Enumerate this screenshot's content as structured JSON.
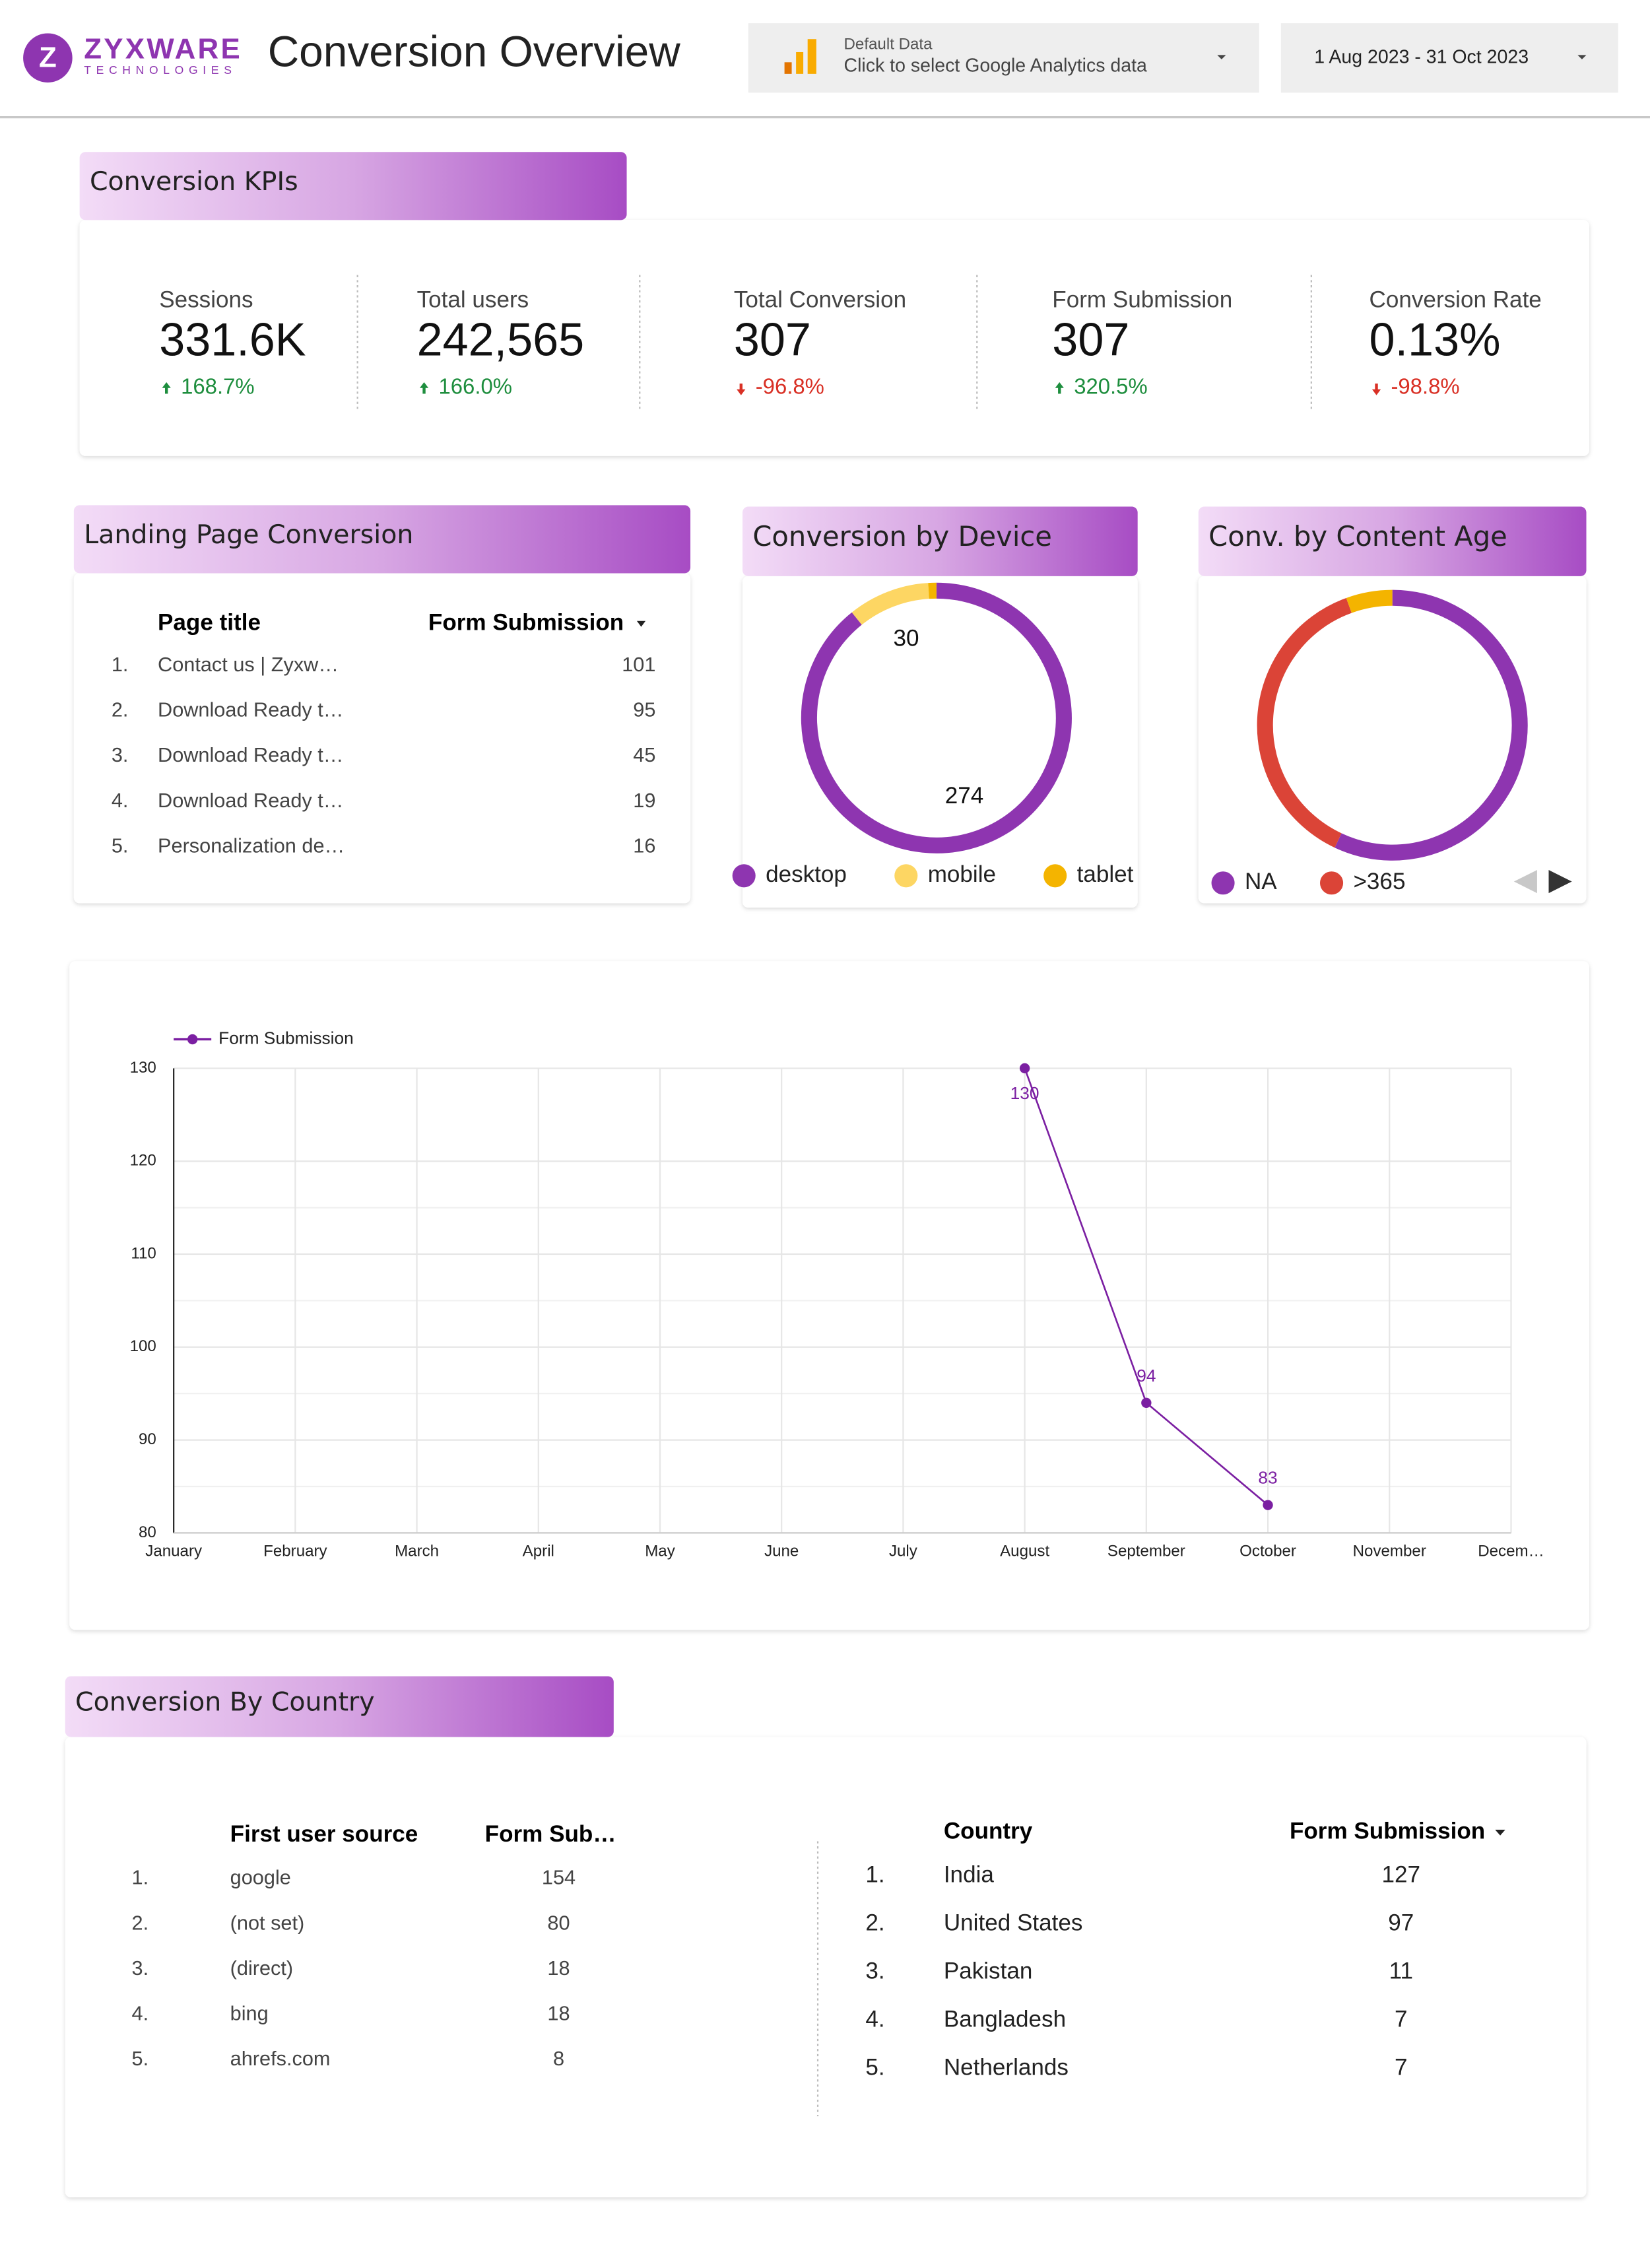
{
  "header": {
    "logo_name": "ZYXWARE",
    "logo_sub": "TECHNOLOGIES",
    "title": "Conversion Overview",
    "data_source": {
      "label": "Default Data",
      "hint": "Click to select Google Analytics data"
    },
    "date_range": "1 Aug 2023 - 31 Oct 2023"
  },
  "kpis": {
    "title": "Conversion KPIs",
    "items": [
      {
        "label": "Sessions",
        "value": "331.6K",
        "change": "168.7%",
        "trend": "up"
      },
      {
        "label": "Total users",
        "value": "242,565",
        "change": "166.0%",
        "trend": "up"
      },
      {
        "label": "Total Conversion",
        "value": "307",
        "change": "-96.8%",
        "trend": "down"
      },
      {
        "label": "Form Submission",
        "value": "307",
        "change": "320.5%",
        "trend": "up"
      },
      {
        "label": "Conversion Rate",
        "value": "0.13%",
        "change": "-98.8%",
        "trend": "down"
      }
    ]
  },
  "landing_pages": {
    "title": "Landing Page Conversion",
    "columns": [
      "Page title",
      "Form Submission"
    ],
    "rows": [
      [
        "1.",
        "Contact us | Zyxw…",
        101
      ],
      [
        "2.",
        "Download Ready t…",
        95
      ],
      [
        "3.",
        "Download Ready t…",
        45
      ],
      [
        "4.",
        "Download Ready t…",
        19
      ],
      [
        "5.",
        "Personalization de…",
        16
      ]
    ]
  },
  "country_section": {
    "title": "Conversion By Country",
    "sources": {
      "columns": [
        "First user source",
        "Form Sub…"
      ],
      "rows": [
        [
          "1.",
          "google",
          154
        ],
        [
          "2.",
          "(not set)",
          80
        ],
        [
          "3.",
          "(direct)",
          18
        ],
        [
          "4.",
          "bing",
          18
        ],
        [
          "5.",
          "ahrefs.com",
          8
        ]
      ]
    },
    "countries": {
      "columns": [
        "Country",
        "Form Submission"
      ],
      "rows": [
        [
          "1.",
          "India",
          127
        ],
        [
          "2.",
          "United States",
          97
        ],
        [
          "3.",
          "Pakistan",
          11
        ],
        [
          "4.",
          "Bangladesh",
          7
        ],
        [
          "5.",
          "Netherlands",
          7
        ]
      ]
    }
  },
  "chart_data": [
    {
      "type": "donut",
      "title": "Conversion by Device",
      "categories": [
        "desktop",
        "mobile",
        "tablet"
      ],
      "values": [
        274,
        30,
        3
      ],
      "colors": [
        "#8e35b0",
        "#fdd663",
        "#f4b400"
      ],
      "data_labels": true
    },
    {
      "type": "donut",
      "title": "Conv. by Content Age",
      "categories": [
        "NA",
        ">365",
        null
      ],
      "values": [
        175,
        115,
        17
      ],
      "colors": [
        "#8e35b0",
        "#db4437",
        "#f4b400"
      ],
      "data_labels": false
    },
    {
      "type": "line",
      "categories": [
        "January",
        "February",
        "March",
        "April",
        "May",
        "June",
        "July",
        "August",
        "September",
        "October",
        "November",
        "Decem…"
      ],
      "series": [
        {
          "name": "Form Submission",
          "color": "#7b1fa2",
          "values": [
            null,
            null,
            null,
            null,
            null,
            null,
            null,
            130,
            94,
            83,
            null,
            null
          ]
        }
      ],
      "ylim": [
        80,
        130
      ],
      "yticks": [
        80,
        90,
        100,
        110,
        120,
        130
      ],
      "grid": true,
      "legend": "top-left",
      "data_labels": true
    }
  ]
}
